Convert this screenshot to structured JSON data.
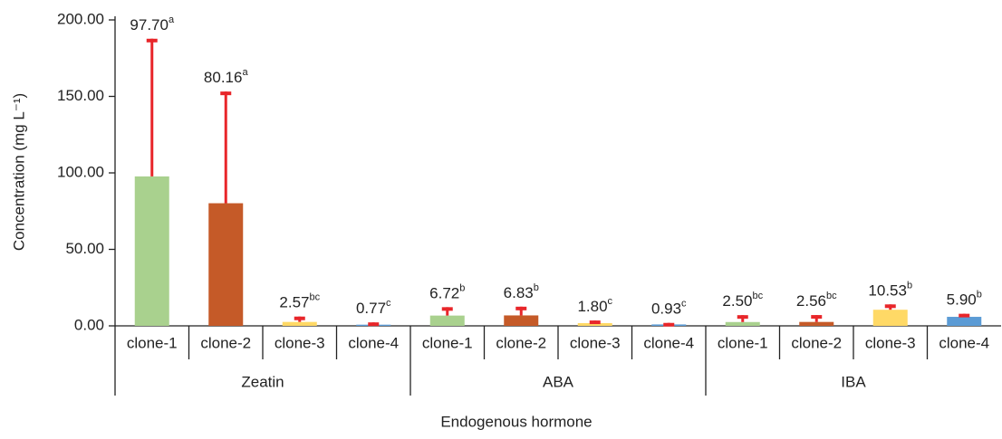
{
  "chart_data": {
    "type": "bar",
    "x_label": "Endogenous hormone",
    "y_label": "Concentration (mg L⁻¹)",
    "groups": [
      "Zeatin",
      "ABA",
      "IBA"
    ],
    "categories": [
      "clone-1",
      "clone-2",
      "clone-3",
      "clone-4",
      "clone-1",
      "clone-2",
      "clone-3",
      "clone-4",
      "clone-1",
      "clone-2",
      "clone-3",
      "clone-4"
    ],
    "values": [
      97.7,
      80.16,
      2.57,
      0.77,
      6.72,
      6.83,
      1.8,
      0.93,
      2.5,
      2.56,
      10.53,
      5.9
    ],
    "value_labels": [
      "97.70",
      "80.16",
      "2.57",
      "0.77",
      "6.72",
      "6.83",
      "1.80",
      "0.93",
      "2.50",
      "2.56",
      "10.53",
      "5.90"
    ],
    "letters": [
      "a",
      "a",
      "bc",
      "c",
      "b",
      "b",
      "c",
      "c",
      "bc",
      "bc",
      "b",
      "b"
    ],
    "errors": [
      90,
      73,
      3.5,
      1.5,
      5.5,
      5.7,
      1.7,
      1,
      4.5,
      4.5,
      3.5,
      2
    ],
    "colors": [
      "#a9d18e",
      "#c55a28",
      "#ffd966",
      "#5b9bd5",
      "#a9d18e",
      "#c55a28",
      "#ffd966",
      "#5b9bd5",
      "#a9d18e",
      "#c55a28",
      "#ffd966",
      "#5b9bd5"
    ],
    "error_color": "#e8262a",
    "ylim": [
      0,
      200
    ],
    "yticks": [
      {
        "value": 0,
        "label": "0.00"
      },
      {
        "value": 50,
        "label": "50.00"
      },
      {
        "value": 100,
        "label": "100.00"
      },
      {
        "value": 150,
        "label": "150.00"
      },
      {
        "value": 200,
        "label": "200.00"
      }
    ]
  }
}
